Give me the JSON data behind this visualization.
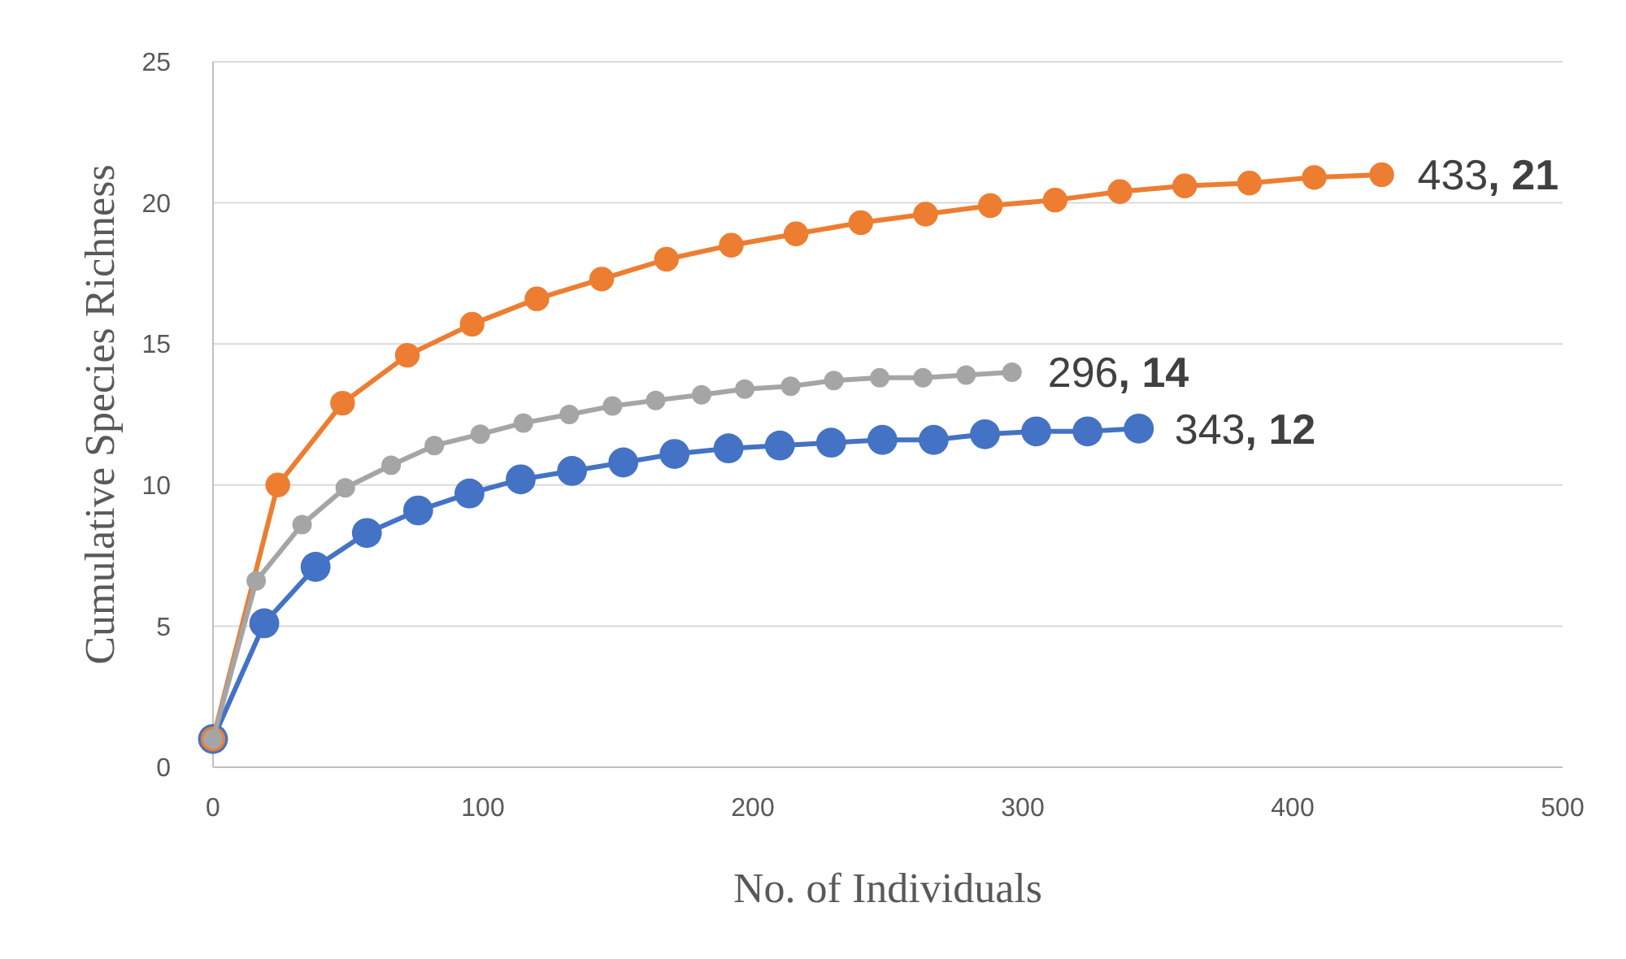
{
  "chart_data": {
    "type": "line",
    "xlabel": "No. of Individuals",
    "ylabel": "Cumulative Species Richness",
    "xlim": [
      0,
      500
    ],
    "xticks": [
      0,
      100,
      200,
      300,
      400,
      500
    ],
    "ylim": [
      0,
      25
    ],
    "yticks": [
      0,
      5,
      10,
      15,
      20,
      25
    ],
    "grid": "y",
    "marker": "circle",
    "line_style": "solid",
    "series": [
      {
        "color": "#4472c4",
        "x": [
          0,
          19,
          38,
          57,
          76,
          95,
          114,
          133,
          152,
          171,
          191,
          210,
          229,
          248,
          267,
          286,
          305,
          324,
          343
        ],
        "values": [
          1,
          5.1,
          7.1,
          8.3,
          9.1,
          9.7,
          10.2,
          10.5,
          10.8,
          11.1,
          11.3,
          11.4,
          11.5,
          11.6,
          11.6,
          11.8,
          11.9,
          11.9,
          12
        ]
      },
      {
        "color": "#ed7d31",
        "x": [
          0,
          24,
          48,
          72,
          96,
          120,
          144,
          168,
          192,
          216,
          240,
          264,
          288,
          312,
          336,
          360,
          384,
          408,
          433
        ],
        "values": [
          1,
          10,
          12.9,
          14.6,
          15.7,
          16.6,
          17.3,
          18,
          18.5,
          18.9,
          19.3,
          19.6,
          19.9,
          20.1,
          20.4,
          20.6,
          20.7,
          20.9,
          21
        ]
      },
      {
        "color": "#a5a5a5",
        "x": [
          0,
          16,
          33,
          49,
          66,
          82,
          99,
          115,
          132,
          148,
          164,
          181,
          197,
          214,
          230,
          247,
          263,
          279,
          296
        ],
        "values": [
          1,
          6.6,
          8.6,
          9.9,
          10.7,
          11.4,
          11.8,
          12.2,
          12.5,
          12.8,
          13,
          13.2,
          13.4,
          13.5,
          13.7,
          13.8,
          13.8,
          13.9,
          14
        ]
      }
    ],
    "annotations": [
      {
        "text": "433, 21",
        "x": 433,
        "y": 21
      },
      {
        "text": "296, 14",
        "x": 296,
        "y": 14
      },
      {
        "text": "343, 12",
        "x": 343,
        "y": 12
      }
    ]
  }
}
